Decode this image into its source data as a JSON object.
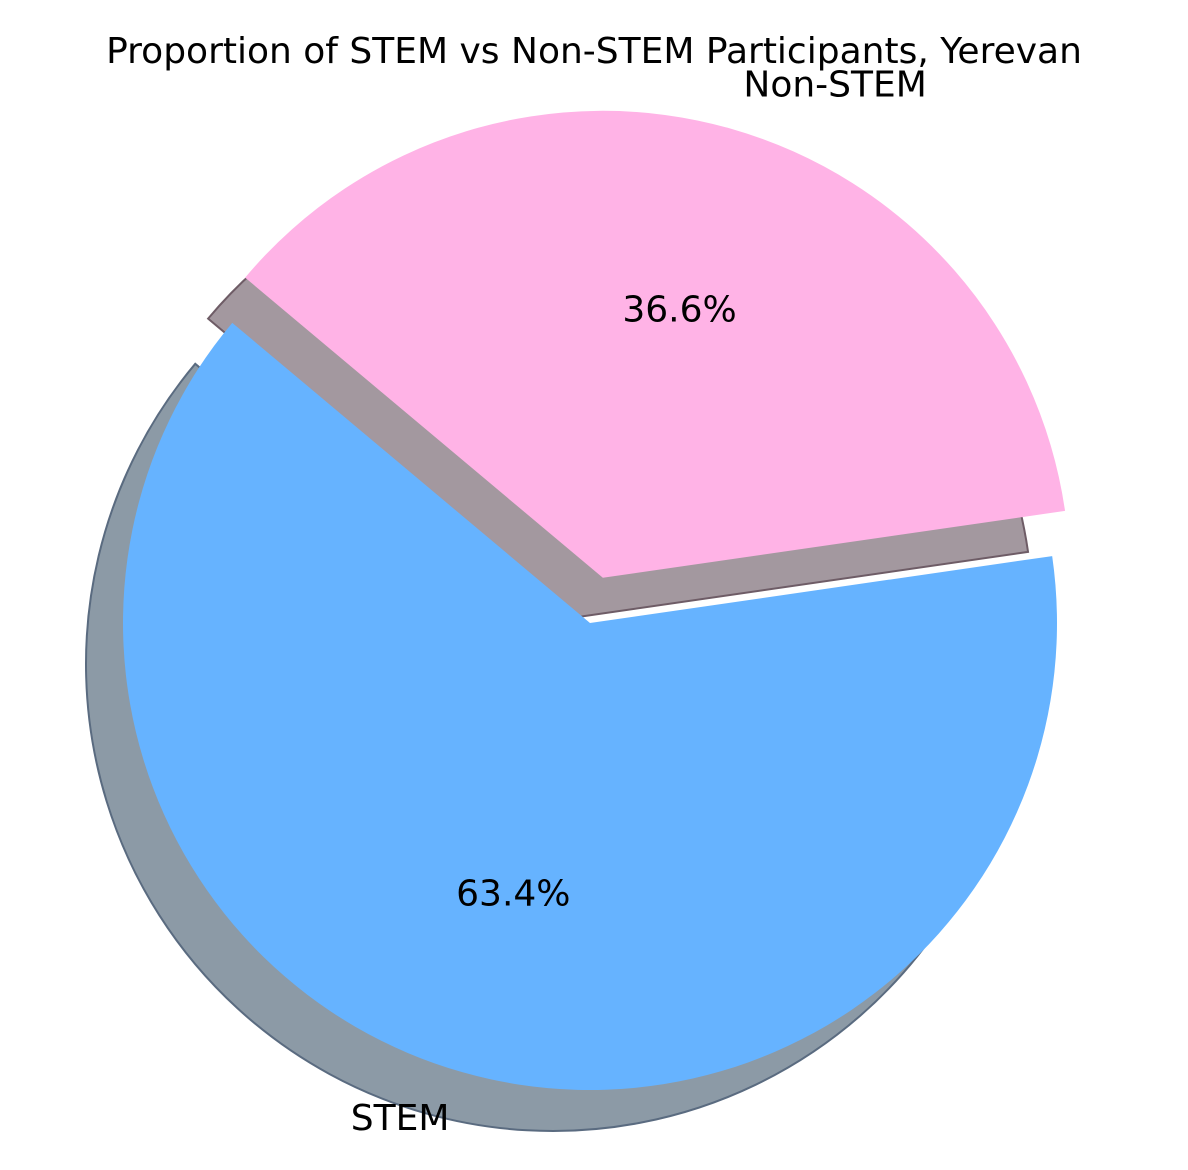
{
  "chart_data": {
    "type": "pie",
    "title": "Proportion of STEM vs Non-STEM Participants, Yerevan",
    "slices": [
      {
        "label": "STEM",
        "value": 63.4,
        "pct_label": "63.4%",
        "color": "#66b3ff",
        "exploded": false
      },
      {
        "label": "Non-STEM",
        "value": 36.6,
        "pct_label": "36.6%",
        "color": "#ffb3e6",
        "exploded": true
      }
    ],
    "shadow": true,
    "legend": "none"
  }
}
